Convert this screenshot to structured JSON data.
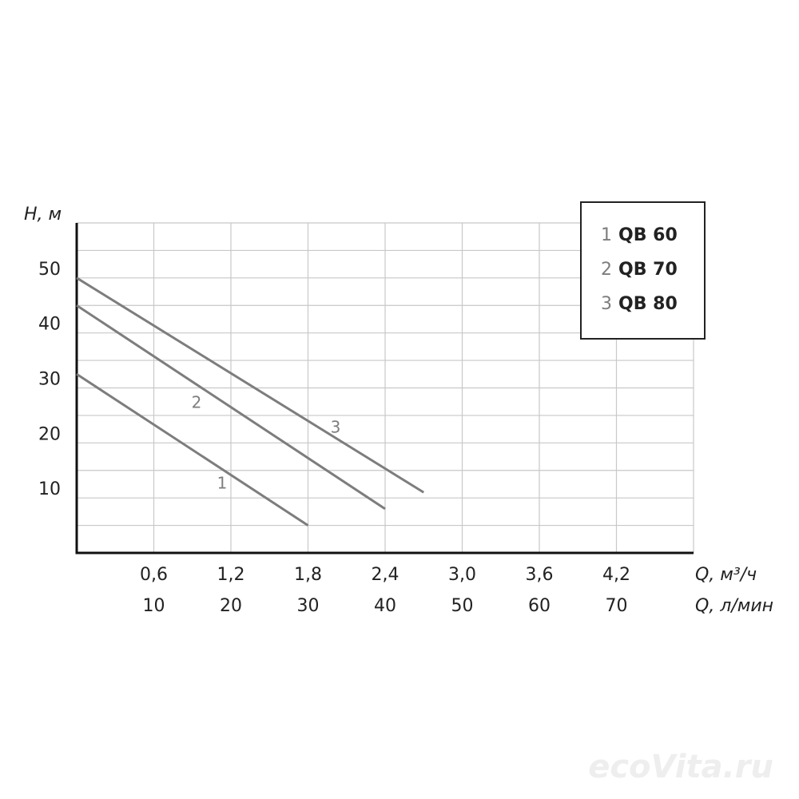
{
  "chart_data": {
    "type": "line",
    "ylabel": "H, м",
    "xlabel": "Q, м³/ч",
    "x2label": "Q, л/мин",
    "xlim": [
      0,
      4.8
    ],
    "xticks": [
      {
        "value": 0.6,
        "label": "0,6"
      },
      {
        "value": 1.2,
        "label": "1,2"
      },
      {
        "value": 1.8,
        "label": "1,8"
      },
      {
        "value": 2.4,
        "label": "2,4"
      },
      {
        "value": 3.0,
        "label": "3,0"
      },
      {
        "value": 3.6,
        "label": "3,6"
      },
      {
        "value": 4.2,
        "label": "4,2"
      }
    ],
    "x2lim": [
      0,
      80
    ],
    "x2ticks": [
      10,
      20,
      30,
      40,
      50,
      60,
      70
    ],
    "ylim": [
      0,
      60
    ],
    "yticks": [
      10,
      20,
      30,
      40,
      50
    ],
    "yminor": [
      5,
      15,
      25,
      35,
      45,
      55
    ],
    "grid": true,
    "legend": "upper right",
    "series": [
      {
        "label": "1",
        "name": "QB 60",
        "color": "#7d7d7d",
        "x": [
          0,
          1.8
        ],
        "values": [
          32.5,
          5
        ]
      },
      {
        "label": "2",
        "name": "QB 70",
        "color": "#7d7d7d",
        "x": [
          0,
          2.4
        ],
        "values": [
          45,
          8
        ]
      },
      {
        "label": "3",
        "name": "QB 80",
        "color": "#7d7d7d",
        "x": [
          0,
          2.7
        ],
        "values": [
          50,
          11
        ]
      }
    ],
    "watermark": "ecoVita.ru"
  }
}
